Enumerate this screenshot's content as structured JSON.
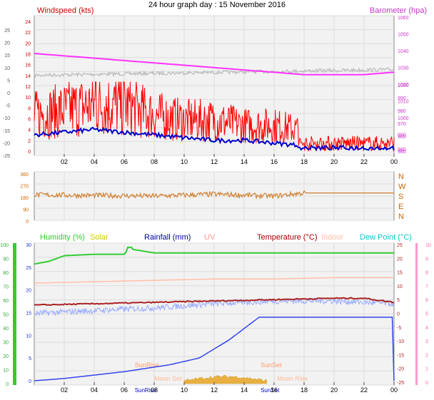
{
  "title": "24 hour graph day : 15 November 2016",
  "colors": {
    "wind": "#ff0000",
    "gust": "#ff0000",
    "avg_wind": "#0000cc",
    "baro": "#ff33ff",
    "indoor_grey": "#b8b8b8",
    "wind_dir": "#d08030",
    "humidity": "#33cc33",
    "solar": "#cc9900",
    "rain": "#3344ee",
    "uv": "#ff9999",
    "temp": "#aa2222",
    "indoor": "#ffc0a8",
    "dew": "#99aaff",
    "dew_label": "#00cccc",
    "sun": "#ff9966",
    "moon": "#ffaa88"
  },
  "chart_data": [
    {
      "type": "line",
      "title": "Windspeed (kts)",
      "ylabel": "Windspeed (kts)",
      "y2label": "Barometer (hpa)",
      "ylim": [
        -25,
        25
      ],
      "y2lim": [
        980,
        1060
      ],
      "x_ticks": [
        "02",
        "04",
        "06",
        "08",
        "10",
        "12",
        "14",
        "16",
        "18",
        "20",
        "22",
        "00"
      ],
      "y_ticks_left_outer": [
        "25",
        "20",
        "15",
        "10",
        "5",
        "0",
        "-5",
        "-10",
        "-15",
        "-20",
        "-25"
      ],
      "y_ticks_left_inner": [
        "24",
        "22",
        "20",
        "18",
        "16",
        "14",
        "12",
        "10",
        "8",
        "6",
        "4",
        "2",
        "0",
        "-2",
        "-4",
        "-6",
        "-8",
        "-10",
        "-12",
        "-14",
        "-16",
        "-18",
        "-20",
        "-22",
        "-24"
      ],
      "y_ticks_left_wind": [
        "24",
        "22",
        "20",
        "18",
        "16",
        "14",
        "12",
        "10",
        "8",
        "6",
        "4",
        "2",
        "0"
      ],
      "y_ticks_right": [
        "1060",
        "1050",
        "1040",
        "1030",
        "1020",
        "1010",
        "1000",
        "990",
        "980",
        "970",
        "960",
        "950",
        "940",
        "930",
        "920",
        "910",
        "900",
        "890",
        "880",
        "870",
        "860",
        "850",
        "840",
        "830",
        "820",
        "810",
        "800",
        "790",
        "780",
        "770",
        "760",
        "750",
        "740",
        "730",
        "720",
        "710",
        "700",
        "690",
        "680",
        "670",
        "660",
        "650",
        "640",
        "630",
        "620",
        "610",
        "600",
        "590",
        "580",
        "570",
        "560",
        "550",
        "540",
        "530",
        "520",
        "510",
        "500",
        "490",
        "480",
        "470",
        "460",
        "450",
        "440",
        "430",
        "420",
        "410",
        "400",
        "390",
        "380",
        "370",
        "360",
        "350",
        "340",
        "330",
        "320",
        "310",
        "300",
        "290",
        "280",
        "270",
        "260",
        "250",
        "240",
        "230",
        "220",
        "210",
        "200",
        "190",
        "180",
        "170",
        "160",
        "150",
        "140",
        "130",
        "120",
        "110",
        "100",
        "90",
        "80",
        "70",
        "60",
        "50",
        "40",
        "30",
        "20",
        "10",
        "0"
      ],
      "y_ticks_right_shown": [
        "1060",
        "1050",
        "1040",
        "1030",
        "1020",
        "1010",
        "1000",
        "990",
        "980",
        "970",
        "960",
        "950",
        "940",
        "930",
        "920",
        "910",
        "900",
        "890",
        "880",
        "870",
        "860",
        "850",
        "840",
        "830",
        "820",
        "810",
        "800",
        "790",
        "780",
        "770",
        "760",
        "750",
        "740",
        "730",
        "720",
        "710",
        "700",
        "690",
        "680",
        "670",
        "660",
        "650",
        "640",
        "630",
        "620",
        "610",
        "600"
      ],
      "baro_ticks": [
        "1050",
        "1040",
        "1030",
        "1020",
        "1010",
        "1000",
        "990",
        "980",
        "970",
        "960",
        "950",
        "940",
        "930",
        "920",
        "910",
        "900",
        "890",
        "880",
        "870",
        "860",
        "850",
        "840",
        "830",
        "820",
        "810",
        "800",
        "790",
        "780",
        "770",
        "760",
        "750",
        "740",
        "730",
        "720",
        "710",
        "700",
        "690",
        "680",
        "670",
        "660",
        "650",
        "640",
        "630",
        "620",
        "610",
        "600",
        "590",
        "580",
        "570",
        "560",
        "550",
        "540",
        "530",
        "520",
        "510",
        "500",
        "490",
        "480",
        "470",
        "460",
        "450",
        "440",
        "430",
        "420",
        "410",
        "400",
        "390",
        "380",
        "370",
        "360",
        "350",
        "340",
        "330",
        "320",
        "310",
        "300",
        "290",
        "280",
        "270",
        "260",
        "250",
        "240",
        "230",
        "220",
        "210",
        "200",
        "190",
        "180",
        "170",
        "160",
        "150",
        "140",
        "130",
        "120",
        "110",
        "100",
        "90",
        "80",
        "70",
        "60",
        "50",
        "40",
        "30",
        "20",
        "10",
        "0"
      ],
      "series": [
        {
          "name": "Barometer",
          "x": [
            0,
            2,
            4,
            6,
            8,
            10,
            12,
            14,
            16,
            18,
            20,
            22,
            23.9
          ],
          "values": [
            1018,
            1017,
            1016,
            1015,
            1014,
            1013,
            1012,
            1011,
            1010,
            1009,
            1009,
            1009,
            1010
          ]
        },
        {
          "name": "Windspeed (kts)",
          "note_hours": [
            0,
            2,
            4,
            6,
            8,
            10,
            12,
            14,
            16,
            18,
            20,
            22,
            24
          ],
          "values": [
            7,
            8,
            9,
            9,
            7,
            6,
            6,
            5,
            5,
            4,
            3,
            2,
            2
          ]
        },
        {
          "name": "Average",
          "values": [
            3,
            3.5,
            4,
            3.5,
            3,
            2.5,
            2,
            2,
            1.5,
            1,
            0.8,
            0.5,
            0.5
          ]
        }
      ]
    },
    {
      "type": "line",
      "title": "Wind direction",
      "y_ticks_left": [
        "360",
        "270",
        "180",
        "90",
        "0"
      ],
      "y_ticks_right": [
        "N",
        "W",
        "S",
        "E",
        "N"
      ],
      "ylim": [
        0,
        360
      ],
      "series": [
        {
          "name": "Direction",
          "x": [
            0,
            4,
            8,
            12,
            16,
            18,
            20,
            24
          ],
          "values": [
            190,
            185,
            180,
            195,
            180,
            205,
            205,
            205
          ]
        }
      ]
    },
    {
      "type": "line",
      "title": "",
      "legend": [
        "Humidity (%)",
        "Solar",
        "Rainfall (mm)",
        "UV",
        "Temperature (°C)",
        "Indoor",
        "Dew Point (°C)"
      ],
      "y_ticks_left_hum": [
        "100",
        "90",
        "80",
        "70",
        "60",
        "50",
        "40",
        "30",
        "20",
        "10",
        "0"
      ],
      "y_ticks_left_rain": [
        "30",
        "25",
        "20",
        "15",
        "10",
        "5",
        "0"
      ],
      "y_ticks_temp": [
        "25",
        "20",
        "15",
        "10",
        "5",
        "0",
        "-5",
        "-10",
        "-15",
        "-20",
        "-25"
      ],
      "y_ticks_uv": [
        "10",
        "9",
        "8",
        "7",
        "6",
        "5",
        "4",
        "3",
        "2",
        "1",
        "0"
      ],
      "ylim_temp": [
        -25,
        25
      ],
      "series": [
        {
          "name": "Humidity (%)",
          "x": [
            0,
            1,
            2,
            4,
            6,
            6.3,
            8,
            12,
            16,
            20,
            24
          ],
          "values": [
            86,
            88,
            92,
            93,
            93,
            97,
            94,
            94,
            94,
            94,
            94
          ]
        },
        {
          "name": "Indoor",
          "x": [
            0,
            4,
            8,
            12,
            16,
            20,
            24
          ],
          "values": [
            11,
            11.5,
            12,
            12.5,
            12.5,
            13,
            13
          ]
        },
        {
          "name": "Temperature (°C)",
          "x": [
            0,
            4,
            8,
            12,
            16,
            20,
            22,
            24
          ],
          "values": [
            3,
            3.5,
            4,
            4.5,
            5,
            5.5,
            5.5,
            4
          ]
        },
        {
          "name": "Dew Point (°C)",
          "x": [
            0,
            4,
            8,
            12,
            16,
            20,
            24
          ],
          "values": [
            0,
            1,
            2,
            3.5,
            4.5,
            4.5,
            3.5
          ]
        },
        {
          "name": "Rainfall (mm)",
          "x": [
            0,
            2,
            6,
            9,
            11,
            13,
            15,
            16,
            18,
            22,
            23.9,
            24
          ],
          "values": [
            0,
            0.5,
            2,
            3.5,
            5,
            9,
            14,
            14,
            14,
            14,
            14,
            0
          ]
        }
      ],
      "annotations": [
        "SunRise",
        "SunSet",
        "Moon Set",
        "Moon Rise",
        "SunRise",
        "SunSet"
      ]
    }
  ],
  "labels": {
    "windspeed": "Windspeed (kts)",
    "barometer": "Barometer (hpa)",
    "humidity": "Humidity (%)",
    "solar": "Solar",
    "rainfall": "Rainfall (mm)",
    "uv": "UV",
    "temperature": "Temperature (°C)",
    "indoor": "Indoor",
    "dewpoint": "Dew Point (°C)",
    "sunrise": "SunRise",
    "sunset": "SunSet",
    "moonset": "Moon Set",
    "moonrise": "Moon Rise"
  }
}
